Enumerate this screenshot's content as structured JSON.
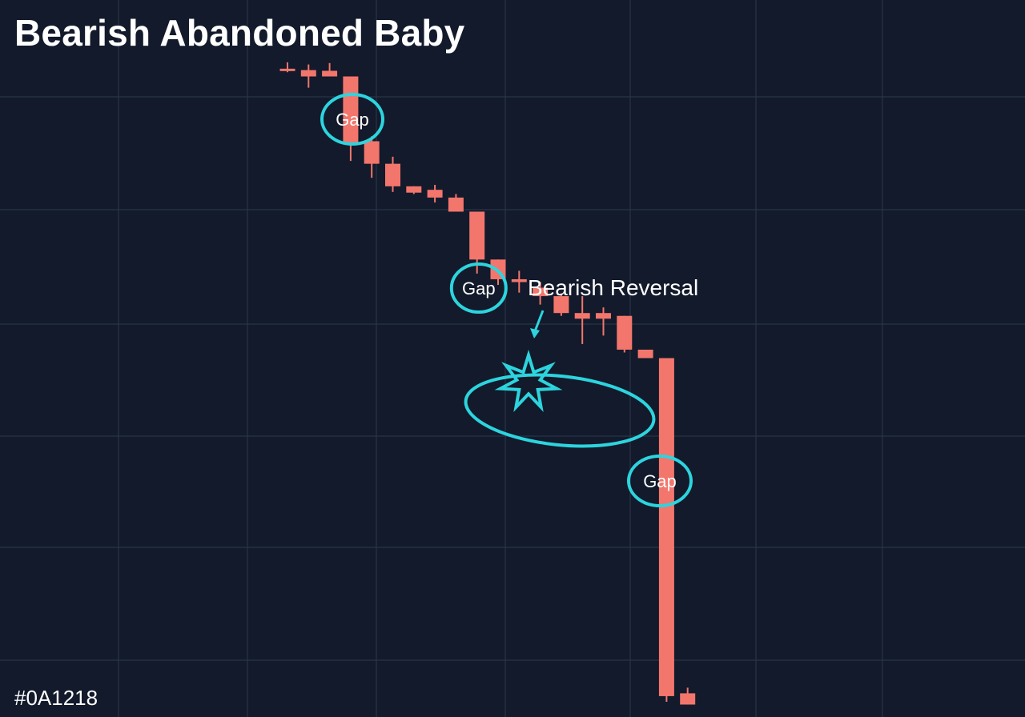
{
  "title": "Bearish Abandoned Baby",
  "footer_label": "#0A1218",
  "colors": {
    "background": "#121a2b",
    "grid": "#2a3448",
    "candle": "#f3766c",
    "annotation": "#2dd4de",
    "text": "#ffffff"
  },
  "chart_data": {
    "type": "candlestick",
    "title": "Bearish Abandoned Baby",
    "xlabel": "",
    "ylabel": "",
    "ylim": [
      0,
      100
    ],
    "grid": true,
    "legend": "none",
    "candles": [
      {
        "open": 90.7,
        "high": 91.6,
        "low": 90.2,
        "close": 90.5
      },
      {
        "open": 90.5,
        "high": 91.3,
        "low": 88.0,
        "close": 89.6
      },
      {
        "open": 90.4,
        "high": 91.5,
        "low": 89.6,
        "close": 89.6
      },
      {
        "open": 89.6,
        "high": 89.6,
        "low": 77.6,
        "close": 80.0
      },
      {
        "open": 80.4,
        "high": 81.1,
        "low": 75.2,
        "close": 77.2
      },
      {
        "open": 77.2,
        "high": 78.2,
        "low": 73.2,
        "close": 74.0
      },
      {
        "open": 74.0,
        "high": 74.0,
        "low": 72.9,
        "close": 73.1
      },
      {
        "open": 73.5,
        "high": 74.2,
        "low": 71.7,
        "close": 72.4
      },
      {
        "open": 72.4,
        "high": 72.9,
        "low": 70.4,
        "close": 70.4
      },
      {
        "open": 70.4,
        "high": 70.4,
        "low": 61.6,
        "close": 63.6
      },
      {
        "open": 63.6,
        "high": 63.6,
        "low": 60.0,
        "close": 60.8
      },
      {
        "open": 60.8,
        "high": 62.0,
        "low": 58.9,
        "close": 60.4
      },
      {
        "open": 59.6,
        "high": 60.4,
        "low": 57.2,
        "close": 58.4
      },
      {
        "open": 58.4,
        "high": 58.8,
        "low": 55.6,
        "close": 56.0
      },
      {
        "open": 56.0,
        "high": 58.4,
        "low": 51.6,
        "close": 55.2
      },
      {
        "open": 56.0,
        "high": 56.8,
        "low": 52.8,
        "close": 55.2
      },
      {
        "open": 55.6,
        "high": 55.6,
        "low": 50.4,
        "close": 50.8
      },
      {
        "open": 50.8,
        "high": 50.4,
        "low": 50.0,
        "close": 49.6
      },
      {
        "open": 49.6,
        "high": 49.6,
        "low": 0.8,
        "close": 1.6
      },
      {
        "open": 2.0,
        "high": 2.8,
        "low": 0.4,
        "close": 0.4
      }
    ],
    "annotations": [
      {
        "label": "Gap",
        "kind": "circle",
        "candle": 2.7
      },
      {
        "label": "Gap",
        "kind": "circle",
        "candle": 8.7
      },
      {
        "label": "Gap",
        "kind": "circle",
        "candle": 17.3
      },
      {
        "label": "Bearish Reversal",
        "kind": "arrow-callout",
        "candle": 11.2
      }
    ]
  }
}
